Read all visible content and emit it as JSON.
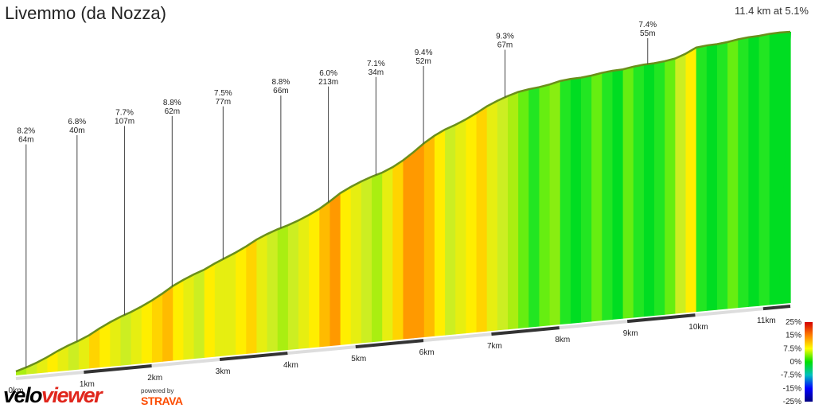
{
  "header": {
    "title": "Livemmo (da Nozza)",
    "summary": "11.4 km at 5.1%"
  },
  "branding": {
    "logo_part1": "velo",
    "logo_part2": "viewer",
    "powered_by": "powered by",
    "strava": "STRAVA"
  },
  "chart_data": {
    "type": "area",
    "title": "Livemmo (da Nozza)",
    "summary": "11.4 km at 5.1%",
    "x_unit": "km",
    "total_km": 11.4,
    "x_ticks": [
      "0km",
      "1km",
      "2km",
      "3km",
      "4km",
      "5km",
      "6km",
      "7km",
      "8km",
      "9km",
      "10km",
      "11km"
    ],
    "segments": [
      {
        "gradient": "8.2%",
        "length": "64m",
        "km": 0.15
      },
      {
        "gradient": "6.8%",
        "length": "40m",
        "km": 0.9
      },
      {
        "gradient": "7.7%",
        "length": "107m",
        "km": 1.6
      },
      {
        "gradient": "8.8%",
        "length": "62m",
        "km": 2.3
      },
      {
        "gradient": "7.5%",
        "length": "77m",
        "km": 3.05
      },
      {
        "gradient": "8.8%",
        "length": "66m",
        "km": 3.9
      },
      {
        "gradient": "6.0%",
        "length": "213m",
        "km": 4.6
      },
      {
        "gradient": "7.1%",
        "length": "34m",
        "km": 5.3
      },
      {
        "gradient": "9.4%",
        "length": "52m",
        "km": 6.0
      },
      {
        "gradient": "9.3%",
        "length": "67m",
        "km": 7.2
      },
      {
        "gradient": "7.4%",
        "length": "55m",
        "km": 9.3
      }
    ],
    "gradient_legend": [
      "25%",
      "15%",
      "7.5%",
      "0%",
      "-7.5%",
      "-15%",
      "-25%"
    ],
    "legend_colors": [
      "#d40000",
      "#ff8000",
      "#ffff00",
      "#00e000",
      "#00c0c0",
      "#0000ff",
      "#000080"
    ],
    "profile_gradients": [
      6,
      7,
      8,
      9,
      8,
      7,
      8,
      10,
      9,
      8,
      7,
      8,
      9,
      10,
      11,
      9,
      8,
      7,
      9,
      8,
      8,
      9,
      10,
      8,
      7,
      6,
      7,
      8,
      9,
      11,
      12,
      9,
      8,
      7,
      6,
      8,
      10,
      12,
      13,
      11,
      9,
      7,
      8,
      9,
      10,
      8,
      7,
      6,
      4,
      3,
      4,
      5,
      3,
      2,
      3,
      4,
      3,
      2,
      4,
      3,
      2,
      3,
      4,
      7,
      9,
      3,
      2,
      3,
      4,
      3,
      2,
      3,
      2,
      1
    ]
  }
}
